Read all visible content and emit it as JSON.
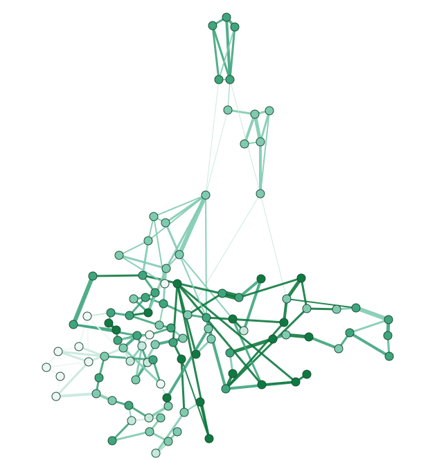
{
  "figure": {
    "type": "network-graph",
    "node_outline": "#2a4a3c",
    "color_scale": [
      "#eef7f4",
      "#c6e8dc",
      "#7fcbb0",
      "#3fa57d",
      "#0f7a40"
    ],
    "nodes": [],
    "edges": []
  }
}
